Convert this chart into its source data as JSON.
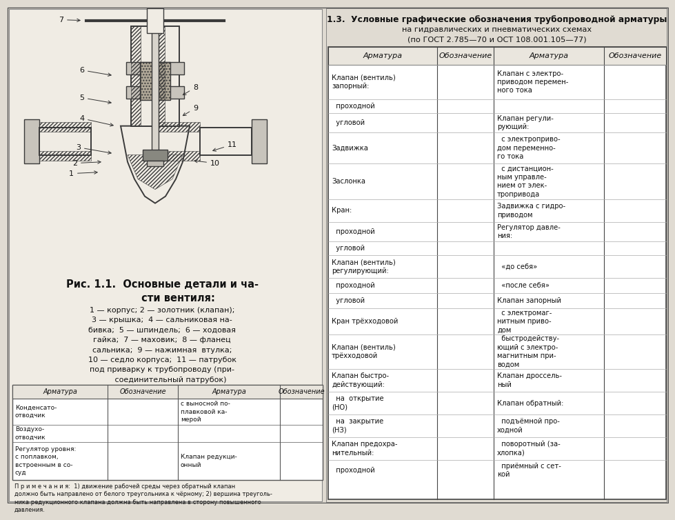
{
  "title_line1": "1.3.  Условные графические обозначения трубопроводной арматуры",
  "title_line2": "на гидравлических и пневматических схемах",
  "title_line3": "(по ГОСТ 2.785—70 и ОСТ 108.001.105—77)",
  "bg_color": "#e8e4dc",
  "fig_color": "#e0dbd2",
  "table_header": [
    "Арматура",
    "Обозначение",
    "Арматура",
    "Обозначение"
  ],
  "left_caption_title": "Рис. 1.1.  Основные детали и ча-\n         сти вентиля:",
  "left_caption_body": "1 — корпус; 2 — золотник (клапан);\n3 — крышка;  4 — сальниковая на-\nбивка;  5 — шпиндель;  6 — ходовая\nгайка;  7 — маховик;  8 — фланец\nсальника;  9 — нажимная  втулка;\n10 — седло корпуса;  11 — патрубок\nпод приварку к трубопроводу (при-\n       соединительный патрубок)",
  "note": "П р и м е ч а н и я:  1) движение рабочей среды через обратный клапан\nдолжно быть направлено от белого треугольника к чёрному; 2) вершина треуголь-\nника редукционного клапана должна быть направлена в сторону повышенного\nдавления."
}
